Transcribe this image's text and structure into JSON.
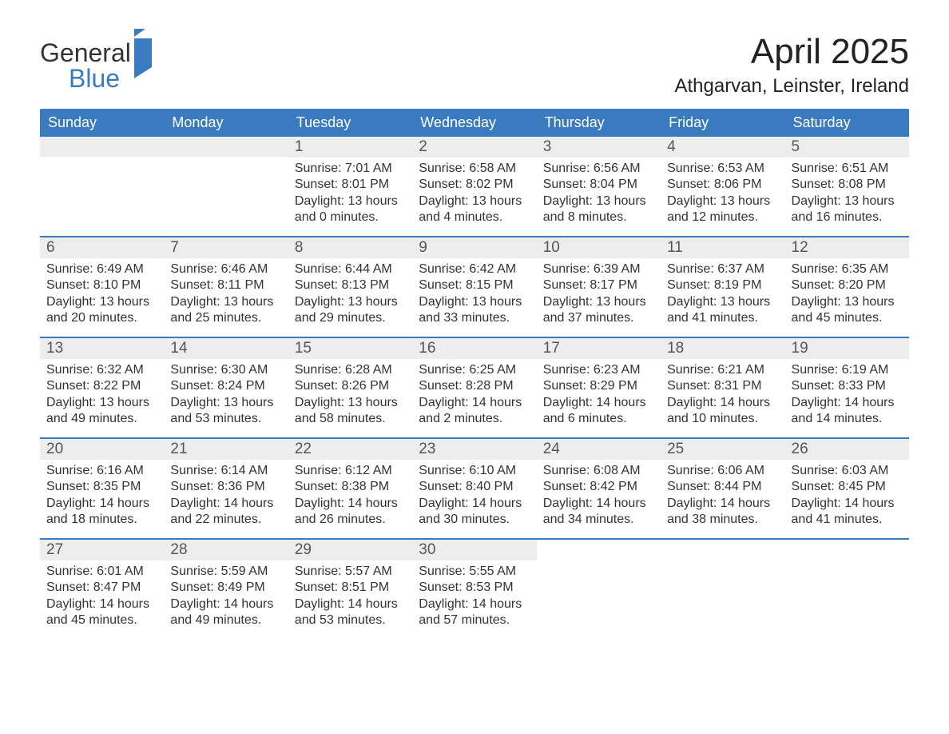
{
  "logo": {
    "word1": "General",
    "word2": "Blue"
  },
  "header": {
    "month_title": "April 2025",
    "location": "Athgarvan, Leinster, Ireland",
    "title_fontsize": 44,
    "location_fontsize": 24
  },
  "colors": {
    "header_bg": "#3a7bbf",
    "header_text": "#ffffff",
    "daynum_bg": "#ededed",
    "week_border": "#3a7bbf",
    "body_text": "#333333",
    "background": "#ffffff",
    "logo_accent": "#3a7bbf"
  },
  "weekdays": [
    "Sunday",
    "Monday",
    "Tuesday",
    "Wednesday",
    "Thursday",
    "Friday",
    "Saturday"
  ],
  "layout": {
    "type": "calendar",
    "columns": 7,
    "rows": 5,
    "first_day_column_index": 2
  },
  "weeks": [
    [
      {
        "day": "",
        "sunrise": "",
        "sunset": "",
        "daylight1": "",
        "daylight2": ""
      },
      {
        "day": "",
        "sunrise": "",
        "sunset": "",
        "daylight1": "",
        "daylight2": ""
      },
      {
        "day": "1",
        "sunrise": "Sunrise: 7:01 AM",
        "sunset": "Sunset: 8:01 PM",
        "daylight1": "Daylight: 13 hours",
        "daylight2": "and 0 minutes."
      },
      {
        "day": "2",
        "sunrise": "Sunrise: 6:58 AM",
        "sunset": "Sunset: 8:02 PM",
        "daylight1": "Daylight: 13 hours",
        "daylight2": "and 4 minutes."
      },
      {
        "day": "3",
        "sunrise": "Sunrise: 6:56 AM",
        "sunset": "Sunset: 8:04 PM",
        "daylight1": "Daylight: 13 hours",
        "daylight2": "and 8 minutes."
      },
      {
        "day": "4",
        "sunrise": "Sunrise: 6:53 AM",
        "sunset": "Sunset: 8:06 PM",
        "daylight1": "Daylight: 13 hours",
        "daylight2": "and 12 minutes."
      },
      {
        "day": "5",
        "sunrise": "Sunrise: 6:51 AM",
        "sunset": "Sunset: 8:08 PM",
        "daylight1": "Daylight: 13 hours",
        "daylight2": "and 16 minutes."
      }
    ],
    [
      {
        "day": "6",
        "sunrise": "Sunrise: 6:49 AM",
        "sunset": "Sunset: 8:10 PM",
        "daylight1": "Daylight: 13 hours",
        "daylight2": "and 20 minutes."
      },
      {
        "day": "7",
        "sunrise": "Sunrise: 6:46 AM",
        "sunset": "Sunset: 8:11 PM",
        "daylight1": "Daylight: 13 hours",
        "daylight2": "and 25 minutes."
      },
      {
        "day": "8",
        "sunrise": "Sunrise: 6:44 AM",
        "sunset": "Sunset: 8:13 PM",
        "daylight1": "Daylight: 13 hours",
        "daylight2": "and 29 minutes."
      },
      {
        "day": "9",
        "sunrise": "Sunrise: 6:42 AM",
        "sunset": "Sunset: 8:15 PM",
        "daylight1": "Daylight: 13 hours",
        "daylight2": "and 33 minutes."
      },
      {
        "day": "10",
        "sunrise": "Sunrise: 6:39 AM",
        "sunset": "Sunset: 8:17 PM",
        "daylight1": "Daylight: 13 hours",
        "daylight2": "and 37 minutes."
      },
      {
        "day": "11",
        "sunrise": "Sunrise: 6:37 AM",
        "sunset": "Sunset: 8:19 PM",
        "daylight1": "Daylight: 13 hours",
        "daylight2": "and 41 minutes."
      },
      {
        "day": "12",
        "sunrise": "Sunrise: 6:35 AM",
        "sunset": "Sunset: 8:20 PM",
        "daylight1": "Daylight: 13 hours",
        "daylight2": "and 45 minutes."
      }
    ],
    [
      {
        "day": "13",
        "sunrise": "Sunrise: 6:32 AM",
        "sunset": "Sunset: 8:22 PM",
        "daylight1": "Daylight: 13 hours",
        "daylight2": "and 49 minutes."
      },
      {
        "day": "14",
        "sunrise": "Sunrise: 6:30 AM",
        "sunset": "Sunset: 8:24 PM",
        "daylight1": "Daylight: 13 hours",
        "daylight2": "and 53 minutes."
      },
      {
        "day": "15",
        "sunrise": "Sunrise: 6:28 AM",
        "sunset": "Sunset: 8:26 PM",
        "daylight1": "Daylight: 13 hours",
        "daylight2": "and 58 minutes."
      },
      {
        "day": "16",
        "sunrise": "Sunrise: 6:25 AM",
        "sunset": "Sunset: 8:28 PM",
        "daylight1": "Daylight: 14 hours",
        "daylight2": "and 2 minutes."
      },
      {
        "day": "17",
        "sunrise": "Sunrise: 6:23 AM",
        "sunset": "Sunset: 8:29 PM",
        "daylight1": "Daylight: 14 hours",
        "daylight2": "and 6 minutes."
      },
      {
        "day": "18",
        "sunrise": "Sunrise: 6:21 AM",
        "sunset": "Sunset: 8:31 PM",
        "daylight1": "Daylight: 14 hours",
        "daylight2": "and 10 minutes."
      },
      {
        "day": "19",
        "sunrise": "Sunrise: 6:19 AM",
        "sunset": "Sunset: 8:33 PM",
        "daylight1": "Daylight: 14 hours",
        "daylight2": "and 14 minutes."
      }
    ],
    [
      {
        "day": "20",
        "sunrise": "Sunrise: 6:16 AM",
        "sunset": "Sunset: 8:35 PM",
        "daylight1": "Daylight: 14 hours",
        "daylight2": "and 18 minutes."
      },
      {
        "day": "21",
        "sunrise": "Sunrise: 6:14 AM",
        "sunset": "Sunset: 8:36 PM",
        "daylight1": "Daylight: 14 hours",
        "daylight2": "and 22 minutes."
      },
      {
        "day": "22",
        "sunrise": "Sunrise: 6:12 AM",
        "sunset": "Sunset: 8:38 PM",
        "daylight1": "Daylight: 14 hours",
        "daylight2": "and 26 minutes."
      },
      {
        "day": "23",
        "sunrise": "Sunrise: 6:10 AM",
        "sunset": "Sunset: 8:40 PM",
        "daylight1": "Daylight: 14 hours",
        "daylight2": "and 30 minutes."
      },
      {
        "day": "24",
        "sunrise": "Sunrise: 6:08 AM",
        "sunset": "Sunset: 8:42 PM",
        "daylight1": "Daylight: 14 hours",
        "daylight2": "and 34 minutes."
      },
      {
        "day": "25",
        "sunrise": "Sunrise: 6:06 AM",
        "sunset": "Sunset: 8:44 PM",
        "daylight1": "Daylight: 14 hours",
        "daylight2": "and 38 minutes."
      },
      {
        "day": "26",
        "sunrise": "Sunrise: 6:03 AM",
        "sunset": "Sunset: 8:45 PM",
        "daylight1": "Daylight: 14 hours",
        "daylight2": "and 41 minutes."
      }
    ],
    [
      {
        "day": "27",
        "sunrise": "Sunrise: 6:01 AM",
        "sunset": "Sunset: 8:47 PM",
        "daylight1": "Daylight: 14 hours",
        "daylight2": "and 45 minutes."
      },
      {
        "day": "28",
        "sunrise": "Sunrise: 5:59 AM",
        "sunset": "Sunset: 8:49 PM",
        "daylight1": "Daylight: 14 hours",
        "daylight2": "and 49 minutes."
      },
      {
        "day": "29",
        "sunrise": "Sunrise: 5:57 AM",
        "sunset": "Sunset: 8:51 PM",
        "daylight1": "Daylight: 14 hours",
        "daylight2": "and 53 minutes."
      },
      {
        "day": "30",
        "sunrise": "Sunrise: 5:55 AM",
        "sunset": "Sunset: 8:53 PM",
        "daylight1": "Daylight: 14 hours",
        "daylight2": "and 57 minutes."
      },
      {
        "day": "",
        "sunrise": "",
        "sunset": "",
        "daylight1": "",
        "daylight2": ""
      },
      {
        "day": "",
        "sunrise": "",
        "sunset": "",
        "daylight1": "",
        "daylight2": ""
      },
      {
        "day": "",
        "sunrise": "",
        "sunset": "",
        "daylight1": "",
        "daylight2": ""
      }
    ]
  ]
}
